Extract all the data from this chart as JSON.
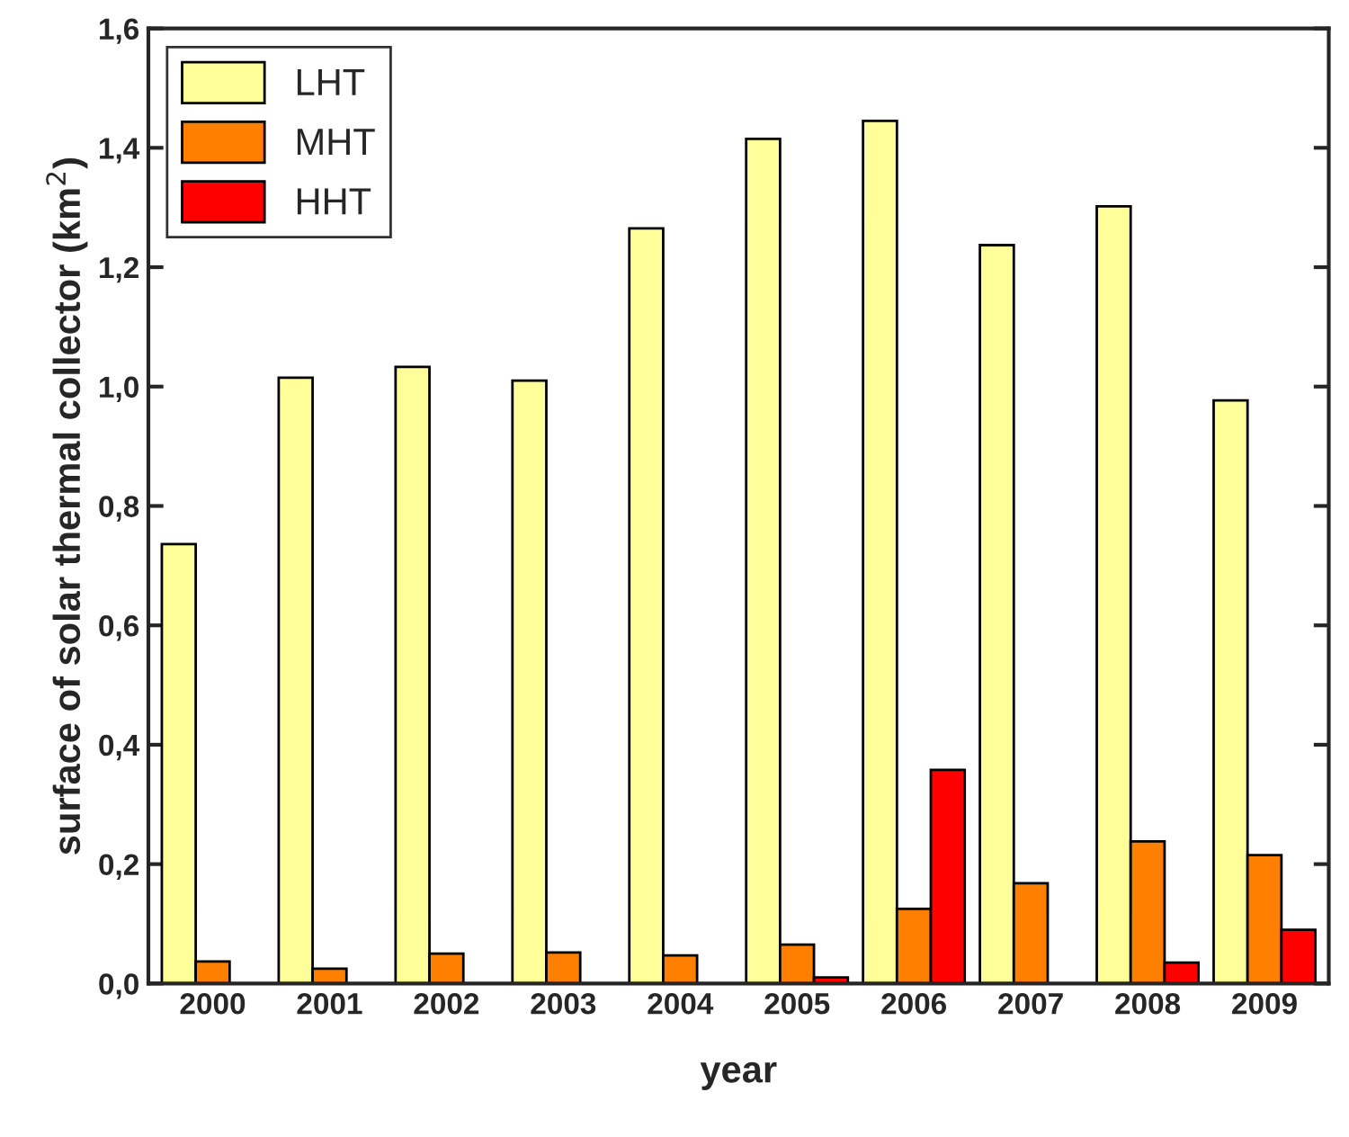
{
  "chart_data": {
    "type": "bar",
    "xlabel": "year",
    "ylabel": "surface of solar thermal collector (km$^{2}$)",
    "categories": [
      "2000",
      "2001",
      "2002",
      "2003",
      "2004",
      "2005",
      "2006",
      "2007",
      "2008",
      "2009"
    ],
    "series": [
      {
        "name": "LHT",
        "color": "#ffff99",
        "values": [
          0.736,
          1.015,
          1.033,
          1.01,
          1.265,
          1.415,
          1.445,
          1.237,
          1.302,
          0.977
        ]
      },
      {
        "name": "MHT",
        "color": "#ff8000",
        "values": [
          0.037,
          0.025,
          0.05,
          0.052,
          0.047,
          0.065,
          0.125,
          0.168,
          0.238,
          0.215
        ]
      },
      {
        "name": "HHT",
        "color": "#ff0000",
        "values": [
          null,
          null,
          null,
          null,
          null,
          0.01,
          0.358,
          null,
          0.035,
          0.09
        ]
      }
    ],
    "ylim": [
      0,
      1.6
    ],
    "yticks": [
      {
        "value": 0,
        "label": "0,0"
      },
      {
        "value": 0.2,
        "label": "0,2"
      },
      {
        "value": 0.4,
        "label": "0,4"
      },
      {
        "value": 0.6,
        "label": "0,6"
      },
      {
        "value": 0.8,
        "label": "0,8"
      },
      {
        "value": 1.0,
        "label": "1,0"
      },
      {
        "value": 1.2,
        "label": "1,2"
      },
      {
        "value": 1.4,
        "label": "1,4"
      },
      {
        "value": 1.6,
        "label": "1,6"
      }
    ],
    "legend": "top left",
    "grid": false
  }
}
